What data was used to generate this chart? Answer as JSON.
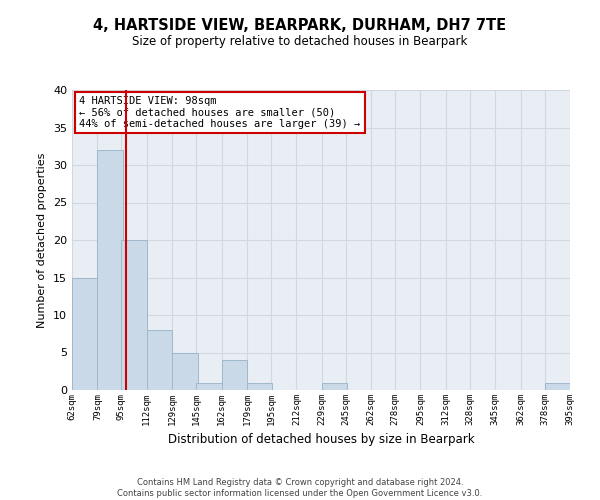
{
  "title": "4, HARTSIDE VIEW, BEARPARK, DURHAM, DH7 7TE",
  "subtitle": "Size of property relative to detached houses in Bearpark",
  "xlabel": "Distribution of detached houses by size in Bearpark",
  "ylabel": "Number of detached properties",
  "bin_edges": [
    62,
    79,
    95,
    112,
    129,
    145,
    162,
    179,
    195,
    212,
    229,
    245,
    262,
    278,
    295,
    312,
    328,
    345,
    362,
    378,
    395
  ],
  "bin_labels": [
    "62sqm",
    "79sqm",
    "95sqm",
    "112sqm",
    "129sqm",
    "145sqm",
    "162sqm",
    "179sqm",
    "195sqm",
    "212sqm",
    "229sqm",
    "245sqm",
    "262sqm",
    "278sqm",
    "295sqm",
    "312sqm",
    "328sqm",
    "345sqm",
    "362sqm",
    "378sqm",
    "395sqm"
  ],
  "counts": [
    15,
    32,
    20,
    8,
    5,
    1,
    4,
    1,
    0,
    0,
    1,
    0,
    0,
    0,
    0,
    0,
    0,
    0,
    0,
    1
  ],
  "bar_color": "#c9d9e8",
  "bar_edgecolor": "#a0b8cc",
  "vline_color": "#cc0000",
  "vline_x": 98,
  "annotation_title": "4 HARTSIDE VIEW: 98sqm",
  "annotation_line1": "← 56% of detached houses are smaller (50)",
  "annotation_line2": "44% of semi-detached houses are larger (39) →",
  "annotation_box_edgecolor": "#cc0000",
  "ylim": [
    0,
    40
  ],
  "yticks": [
    0,
    5,
    10,
    15,
    20,
    25,
    30,
    35,
    40
  ],
  "grid_color": "#d0d8e0",
  "bg_color": "#e8eef4",
  "footer_line1": "Contains HM Land Registry data © Crown copyright and database right 2024.",
  "footer_line2": "Contains public sector information licensed under the Open Government Licence v3.0."
}
